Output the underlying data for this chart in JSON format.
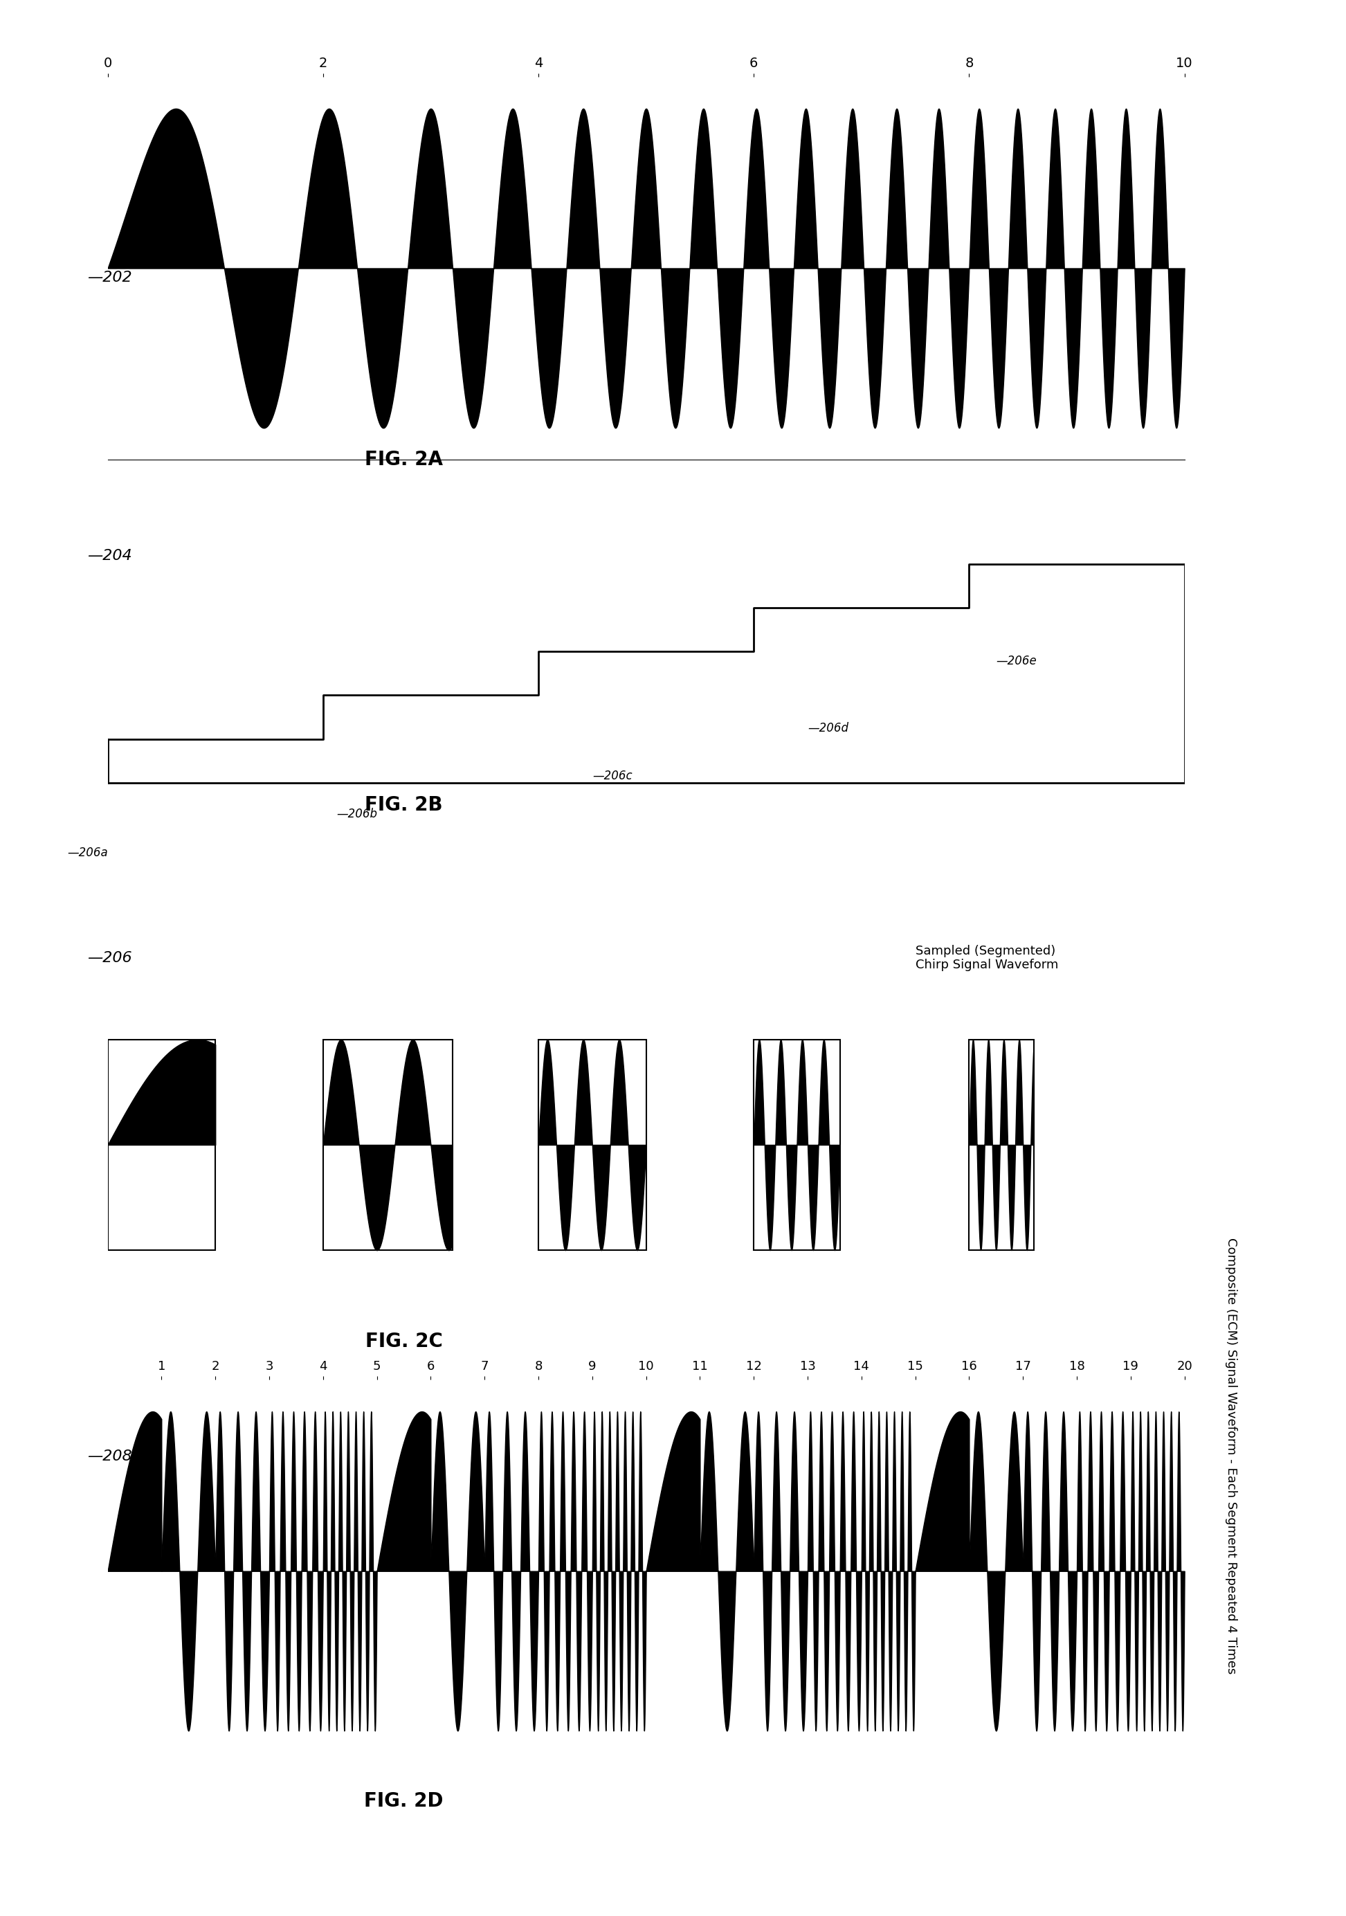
{
  "fig_width": 19.45,
  "fig_height": 27.68,
  "bg_color": "#ffffff",
  "panel_labels": [
    "202",
    "204",
    "206",
    "208"
  ],
  "fig_labels": [
    "FIG. 2A",
    "FIG. 2B",
    "FIG. 2C",
    "FIG. 2D"
  ],
  "chirp_2a_ticks": [
    0,
    2,
    4,
    6,
    8,
    10
  ],
  "ecm_2d_ticks": [
    1,
    2,
    3,
    4,
    5,
    6,
    7,
    8,
    9,
    10,
    11,
    12,
    13,
    14,
    15,
    16,
    17,
    18,
    19,
    20
  ],
  "segment_labels": [
    "206a",
    "206b",
    "206c",
    "206d",
    "206e"
  ],
  "annotation_text_2c": "Sampled (Segmented)\nChirp Signal Waveform",
  "annotation_text_2d": "Composite (ECM) Signal Waveform - Each Segment Repeated 4 Times"
}
